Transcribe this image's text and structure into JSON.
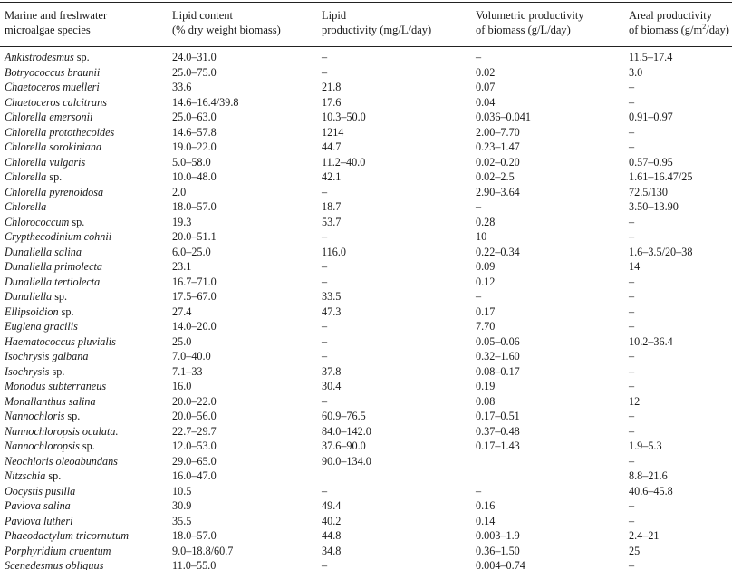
{
  "header": {
    "col0": [
      "Marine and freshwater",
      "microalgae species"
    ],
    "col1": [
      "Lipid content",
      "(% dry weight biomass)"
    ],
    "col2": [
      "Lipid",
      "productivity (mg/L/day)"
    ],
    "col3": [
      "Volumetric productivity",
      "of biomass (g/L/day)"
    ],
    "col4_line1": "Areal productivity",
    "col4_line2_pre": "of biomass (g/m",
    "col4_line2_sup": "2",
    "col4_line2_post": "/day)"
  },
  "rows": [
    {
      "genus": "Ankistrodesmus",
      "epithet": "sp.",
      "lipid": "24.0–31.0",
      "prod": "–",
      "vol": "–",
      "areal": "11.5–17.4"
    },
    {
      "genus": "Botryococcus braunii",
      "epithet": "",
      "lipid": "25.0–75.0",
      "prod": "–",
      "vol": "0.02",
      "areal": "3.0"
    },
    {
      "genus": "Chaetoceros muelleri",
      "epithet": "",
      "lipid": "33.6",
      "prod": "21.8",
      "vol": "0.07",
      "areal": "–"
    },
    {
      "genus": "Chaetoceros calcitrans",
      "epithet": "",
      "lipid": "14.6–16.4/39.8",
      "prod": "17.6",
      "vol": "0.04",
      "areal": "–"
    },
    {
      "genus": "Chlorella emersonii",
      "epithet": "",
      "lipid": "25.0–63.0",
      "prod": "10.3–50.0",
      "vol": "0.036–0.041",
      "areal": "0.91–0.97"
    },
    {
      "genus": "Chlorella protothecoides",
      "epithet": "",
      "lipid": "14.6–57.8",
      "prod": "1214",
      "vol": "2.00–7.70",
      "areal": "–"
    },
    {
      "genus": "Chlorella sorokiniana",
      "epithet": "",
      "lipid": "19.0–22.0",
      "prod": "44.7",
      "vol": "0.23–1.47",
      "areal": "–"
    },
    {
      "genus": "Chlorella vulgaris",
      "epithet": "",
      "lipid": "5.0–58.0",
      "prod": "11.2–40.0",
      "vol": "0.02–0.20",
      "areal": "0.57–0.95"
    },
    {
      "genus": "Chlorella",
      "epithet": "sp.",
      "lipid": "10.0–48.0",
      "prod": "42.1",
      "vol": "0.02–2.5",
      "areal": "1.61–16.47/25"
    },
    {
      "genus": "Chlorella pyrenoidosa",
      "epithet": "",
      "lipid": "2.0",
      "prod": "–",
      "vol": "2.90–3.64",
      "areal": "72.5/130"
    },
    {
      "genus": "Chlorella",
      "epithet": "",
      "lipid": "18.0–57.0",
      "prod": "18.7",
      "vol": "–",
      "areal": "3.50–13.90"
    },
    {
      "genus": "Chlorococcum",
      "epithet": "sp.",
      "lipid": "19.3",
      "prod": "53.7",
      "vol": "0.28",
      "areal": "–"
    },
    {
      "genus": "Crypthecodinium cohnii",
      "epithet": "",
      "lipid": "20.0–51.1",
      "prod": "–",
      "vol": "10",
      "areal": "–"
    },
    {
      "genus": "Dunaliella salina",
      "epithet": "",
      "lipid": "6.0–25.0",
      "prod": "116.0",
      "vol": "0.22–0.34",
      "areal": "1.6–3.5/20–38"
    },
    {
      "genus": "Dunaliella primolecta",
      "epithet": "",
      "lipid": "23.1",
      "prod": "–",
      "vol": "0.09",
      "areal": "14"
    },
    {
      "genus": "Dunaliella tertiolecta",
      "epithet": "",
      "lipid": "16.7–71.0",
      "prod": "–",
      "vol": "0.12",
      "areal": "–"
    },
    {
      "genus": "Dunaliella",
      "epithet": "sp.",
      "lipid": "17.5–67.0",
      "prod": "33.5",
      "vol": "–",
      "areal": "–"
    },
    {
      "genus": "Ellipsoidion",
      "epithet": "sp.",
      "lipid": "27.4",
      "prod": "47.3",
      "vol": "0.17",
      "areal": "–"
    },
    {
      "genus": "Euglena gracilis",
      "epithet": "",
      "lipid": "14.0–20.0",
      "prod": "–",
      "vol": "7.70",
      "areal": "–"
    },
    {
      "genus": "Haematococcus pluvialis",
      "epithet": "",
      "lipid": "25.0",
      "prod": "–",
      "vol": "0.05–0.06",
      "areal": "10.2–36.4"
    },
    {
      "genus": "Isochrysis galbana",
      "epithet": "",
      "lipid": "7.0–40.0",
      "prod": "–",
      "vol": "0.32–1.60",
      "areal": "–"
    },
    {
      "genus": "Isochrysis",
      "epithet": "sp.",
      "lipid": "7.1–33",
      "prod": "37.8",
      "vol": "0.08–0.17",
      "areal": "–"
    },
    {
      "genus": "Monodus subterraneus",
      "epithet": "",
      "lipid": "16.0",
      "prod": "30.4",
      "vol": "0.19",
      "areal": "–"
    },
    {
      "genus": "Monallanthus salina",
      "epithet": "",
      "lipid": "20.0–22.0",
      "prod": "–",
      "vol": "0.08",
      "areal": "12"
    },
    {
      "genus": "Nannochloris",
      "epithet": "sp.",
      "lipid": "20.0–56.0",
      "prod": "60.9–76.5",
      "vol": "0.17–0.51",
      "areal": "–"
    },
    {
      "genus": "Nannochloropsis oculata.",
      "epithet": "",
      "lipid": "22.7–29.7",
      "prod": "84.0–142.0",
      "vol": "0.37–0.48",
      "areal": "–"
    },
    {
      "genus": "Nannochloropsis",
      "epithet": "sp.",
      "lipid": "12.0–53.0",
      "prod": "37.6–90.0",
      "vol": "0.17–1.43",
      "areal": "1.9–5.3"
    },
    {
      "genus": "Neochloris oleoabundans",
      "epithet": "",
      "lipid": "29.0–65.0",
      "prod": "90.0–134.0",
      "vol": "",
      "areal": "–"
    },
    {
      "genus": "Nitzschia",
      "epithet": "sp.",
      "lipid": "16.0–47.0",
      "prod": "",
      "vol": "",
      "areal": "8.8–21.6"
    },
    {
      "genus": "Oocystis pusilla",
      "epithet": "",
      "lipid": "10.5",
      "prod": "–",
      "vol": "–",
      "areal": "40.6–45.8"
    },
    {
      "genus": "Pavlova salina",
      "epithet": "",
      "lipid": "30.9",
      "prod": "49.4",
      "vol": "0.16",
      "areal": "–"
    },
    {
      "genus": "Pavlova lutheri",
      "epithet": "",
      "lipid": "35.5",
      "prod": "40.2",
      "vol": "0.14",
      "areal": "–"
    },
    {
      "genus": "Phaeodactylum tricornutum",
      "epithet": "",
      "lipid": "18.0–57.0",
      "prod": "44.8",
      "vol": "0.003–1.9",
      "areal": "2.4–21"
    },
    {
      "genus": "Porphyridium cruentum",
      "epithet": "",
      "lipid": "9.0–18.8/60.7",
      "prod": "34.8",
      "vol": "0.36–1.50",
      "areal": "25"
    },
    {
      "genus": "Scenedesmus obliquus",
      "epithet": "",
      "lipid": "11.0–55.0",
      "prod": "–",
      "vol": "0.004–0.74",
      "areal": "–"
    }
  ]
}
